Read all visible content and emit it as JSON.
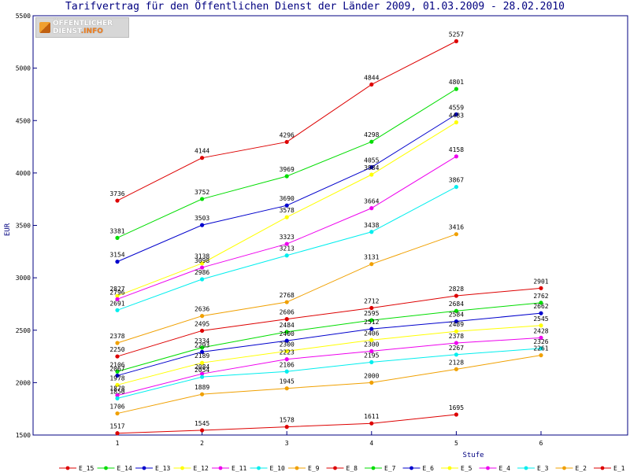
{
  "chart_data": {
    "type": "line",
    "title": "Tarifvertrag für den Öffentlichen Dienst der Länder 2009, 01.03.2009 - 28.02.2010",
    "xlabel": "Stufe",
    "ylabel": "EUR",
    "x_ticks": [
      "1",
      "2",
      "3",
      "4",
      "5",
      "6"
    ],
    "ylim": [
      1500,
      5500
    ],
    "y_ticks": [
      1500,
      2000,
      2500,
      3000,
      3500,
      4000,
      4500,
      5000,
      5500
    ],
    "grid": false,
    "legend_position": "bottom",
    "series": [
      {
        "name": "E_15",
        "color": "#dd0000",
        "x": [
          1,
          2,
          3,
          4,
          5
        ],
        "values": [
          3736,
          4144,
          4296,
          4844,
          5257
        ]
      },
      {
        "name": "E_14",
        "color": "#00dd00",
        "x": [
          1,
          2,
          3,
          4,
          5
        ],
        "values": [
          3381,
          3752,
          3969,
          4298,
          4801
        ]
      },
      {
        "name": "E_13",
        "color": "#0000cc",
        "x": [
          1,
          2,
          3,
          4,
          5
        ],
        "values": [
          3154,
          3503,
          3690,
          4055,
          4559
        ]
      },
      {
        "name": "E_12",
        "color": "#ffff00",
        "x": [
          1,
          2,
          3,
          4,
          5
        ],
        "values": [
          2827,
          3138,
          3578,
          3984,
          4483
        ]
      },
      {
        "name": "E_11",
        "color": "#ee00ee",
        "x": [
          1,
          2,
          3,
          4,
          5
        ],
        "values": [
          2796,
          3098,
          3323,
          3664,
          4158
        ]
      },
      {
        "name": "E_10",
        "color": "#00eeee",
        "x": [
          1,
          2,
          3,
          4,
          5
        ],
        "values": [
          2691,
          2986,
          3213,
          3438,
          3867
        ]
      },
      {
        "name": "E_9",
        "color": "#f0a000",
        "x": [
          1,
          2,
          3,
          4,
          5
        ],
        "values": [
          2378,
          2636,
          2768,
          3131,
          3416
        ]
      },
      {
        "name": "E_8",
        "color": "#dd0000",
        "x": [
          1,
          2,
          3,
          4,
          5,
          6
        ],
        "values": [
          2250,
          2495,
          2606,
          2712,
          2828,
          2901
        ]
      },
      {
        "name": "E_7",
        "color": "#00dd00",
        "x": [
          1,
          2,
          3,
          4,
          5,
          6
        ],
        "values": [
          2106,
          2334,
          2484,
          2595,
          2684,
          2762
        ]
      },
      {
        "name": "E_6",
        "color": "#0000cc",
        "x": [
          1,
          2,
          3,
          4,
          5,
          6
        ],
        "values": [
          2067,
          2293,
          2400,
          2512,
          2584,
          2662
        ]
      },
      {
        "name": "E_5",
        "color": "#ffff00",
        "x": [
          1,
          2,
          3,
          4,
          5,
          6
        ],
        "values": [
          1978,
          2189,
          2300,
          2406,
          2489,
          2545
        ]
      },
      {
        "name": "E_4",
        "color": "#ee00ee",
        "x": [
          1,
          2,
          3,
          4,
          5,
          6
        ],
        "values": [
          1878,
          2084,
          2223,
          2300,
          2378,
          2428
        ]
      },
      {
        "name": "E_3",
        "color": "#00eeee",
        "x": [
          1,
          2,
          3,
          4,
          5,
          6
        ],
        "values": [
          1850,
          2054,
          2106,
          2195,
          2267,
          2326
        ]
      },
      {
        "name": "E_2",
        "color": "#f0a000",
        "x": [
          1,
          2,
          3,
          4,
          5,
          6
        ],
        "values": [
          1706,
          1889,
          1945,
          2000,
          2128,
          2261
        ]
      },
      {
        "name": "E_1",
        "color": "#dd0000",
        "x": [
          1,
          2,
          3,
          4,
          5
        ],
        "values": [
          1517,
          1545,
          1578,
          1611,
          1695
        ]
      }
    ]
  },
  "logo": {
    "line1": "ÖFFENTLICHER",
    "line2": "DIENST",
    "line3": ".INFO"
  }
}
